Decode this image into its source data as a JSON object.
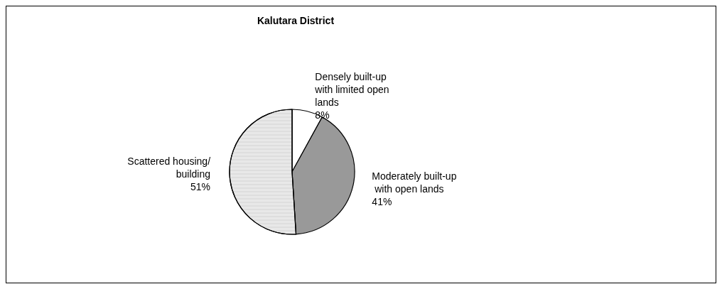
{
  "chart_data": {
    "type": "pie",
    "title": "Kalutara District",
    "categories": [
      "Densely built-up with limited open lands",
      "Moderately built-up with open lands",
      "Scattered housing/building"
    ],
    "values": [
      8,
      41,
      51
    ],
    "colors": [
      "#ffffff",
      "#999999",
      "#e8e8e8"
    ],
    "value_labels": [
      "8%",
      "41%",
      "51%"
    ],
    "legend": false
  }
}
